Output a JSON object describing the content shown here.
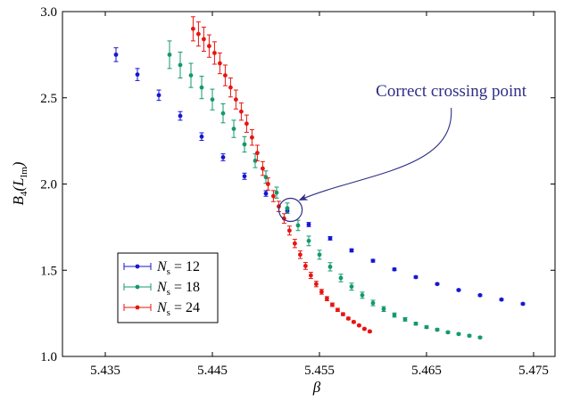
{
  "chart_data": {
    "type": "scatter",
    "xlabel": "β",
    "ylabel_main": "B",
    "ylabel_sub1": "4",
    "ylabel_paren": "(L",
    "ylabel_sub2": "Im",
    "ylabel_close": ")",
    "xlim": [
      5.431,
      5.477
    ],
    "ylim": [
      1.0,
      3.0
    ],
    "x_ticks": [
      5.435,
      5.445,
      5.455,
      5.465,
      5.475
    ],
    "x_tick_labels": [
      "5.435",
      "5.445",
      "5.455",
      "5.465",
      "5.475"
    ],
    "y_ticks": [
      1.0,
      1.5,
      2.0,
      2.5,
      3.0
    ],
    "y_tick_labels": [
      "1.0",
      "1.5",
      "2.0",
      "2.5",
      "3.0"
    ],
    "grid": false,
    "legend_position": "bottom-left",
    "annotation": {
      "text": "Correct crossing point",
      "target": [
        5.4523,
        1.85
      ],
      "color": "#2e2e86"
    },
    "series": [
      {
        "name_main": "N",
        "name_sub": "s",
        "name_rest": " = 12",
        "color": "#1616d4",
        "x": [
          5.436,
          5.438,
          5.44,
          5.442,
          5.444,
          5.446,
          5.448,
          5.45,
          5.452,
          5.454,
          5.456,
          5.458,
          5.46,
          5.462,
          5.464,
          5.466,
          5.468,
          5.47,
          5.472,
          5.474
        ],
        "y": [
          2.75,
          2.635,
          2.515,
          2.395,
          2.275,
          2.155,
          2.045,
          1.945,
          1.845,
          1.765,
          1.685,
          1.615,
          1.555,
          1.505,
          1.46,
          1.42,
          1.385,
          1.355,
          1.33,
          1.305
        ],
        "err": [
          0.04,
          0.035,
          0.03,
          0.025,
          0.022,
          0.02,
          0.018,
          0.016,
          0.014,
          0.012,
          0.01,
          0.009,
          0.008,
          0.007,
          0.006,
          0.005,
          0.005,
          0.005,
          0.005,
          0.005
        ]
      },
      {
        "name_main": "N",
        "name_sub": "s",
        "name_rest": " = 18",
        "color": "#14996b",
        "x": [
          5.441,
          5.442,
          5.443,
          5.444,
          5.445,
          5.446,
          5.447,
          5.448,
          5.449,
          5.45,
          5.451,
          5.452,
          5.453,
          5.454,
          5.455,
          5.456,
          5.457,
          5.458,
          5.459,
          5.46,
          5.461,
          5.462,
          5.463,
          5.464,
          5.465,
          5.466,
          5.467,
          5.468,
          5.469,
          5.47
        ],
        "y": [
          2.75,
          2.69,
          2.63,
          2.56,
          2.49,
          2.41,
          2.32,
          2.23,
          2.135,
          2.04,
          1.95,
          1.86,
          1.76,
          1.67,
          1.59,
          1.52,
          1.455,
          1.405,
          1.355,
          1.31,
          1.275,
          1.24,
          1.215,
          1.19,
          1.17,
          1.155,
          1.14,
          1.13,
          1.12,
          1.11
        ],
        "err": [
          0.08,
          0.075,
          0.07,
          0.065,
          0.06,
          0.055,
          0.05,
          0.045,
          0.04,
          0.036,
          0.032,
          0.03,
          0.03,
          0.028,
          0.026,
          0.024,
          0.022,
          0.02,
          0.018,
          0.016,
          0.014,
          0.012,
          0.01,
          0.008,
          0.007,
          0.006,
          0.005,
          0.005,
          0.005,
          0.005
        ]
      },
      {
        "name_main": "N",
        "name_sub": "s",
        "name_rest": " = 24",
        "color": "#e8140f",
        "x": [
          5.4432,
          5.4437,
          5.4442,
          5.4447,
          5.4452,
          5.4457,
          5.4462,
          5.4467,
          5.4472,
          5.4477,
          5.4482,
          5.4487,
          5.4492,
          5.4497,
          5.4502,
          5.4507,
          5.4512,
          5.4517,
          5.4522,
          5.4527,
          5.4532,
          5.4537,
          5.4542,
          5.4547,
          5.4552,
          5.4557,
          5.4562,
          5.4567,
          5.4572,
          5.4577,
          5.4582,
          5.4587,
          5.4592,
          5.4597
        ],
        "y": [
          2.9,
          2.87,
          2.84,
          2.8,
          2.76,
          2.7,
          2.63,
          2.56,
          2.49,
          2.42,
          2.35,
          2.27,
          2.18,
          2.09,
          2.0,
          1.93,
          1.87,
          1.8,
          1.73,
          1.655,
          1.59,
          1.525,
          1.47,
          1.42,
          1.375,
          1.335,
          1.3,
          1.27,
          1.245,
          1.22,
          1.2,
          1.18,
          1.16,
          1.145
        ],
        "err": [
          0.07,
          0.07,
          0.07,
          0.065,
          0.065,
          0.06,
          0.06,
          0.055,
          0.055,
          0.05,
          0.05,
          0.045,
          0.045,
          0.04,
          0.035,
          0.032,
          0.03,
          0.028,
          0.026,
          0.024,
          0.022,
          0.02,
          0.018,
          0.016,
          0.014,
          0.012,
          0.01,
          0.009,
          0.008,
          0.007,
          0.006,
          0.005,
          0.005,
          0.005
        ]
      }
    ]
  }
}
